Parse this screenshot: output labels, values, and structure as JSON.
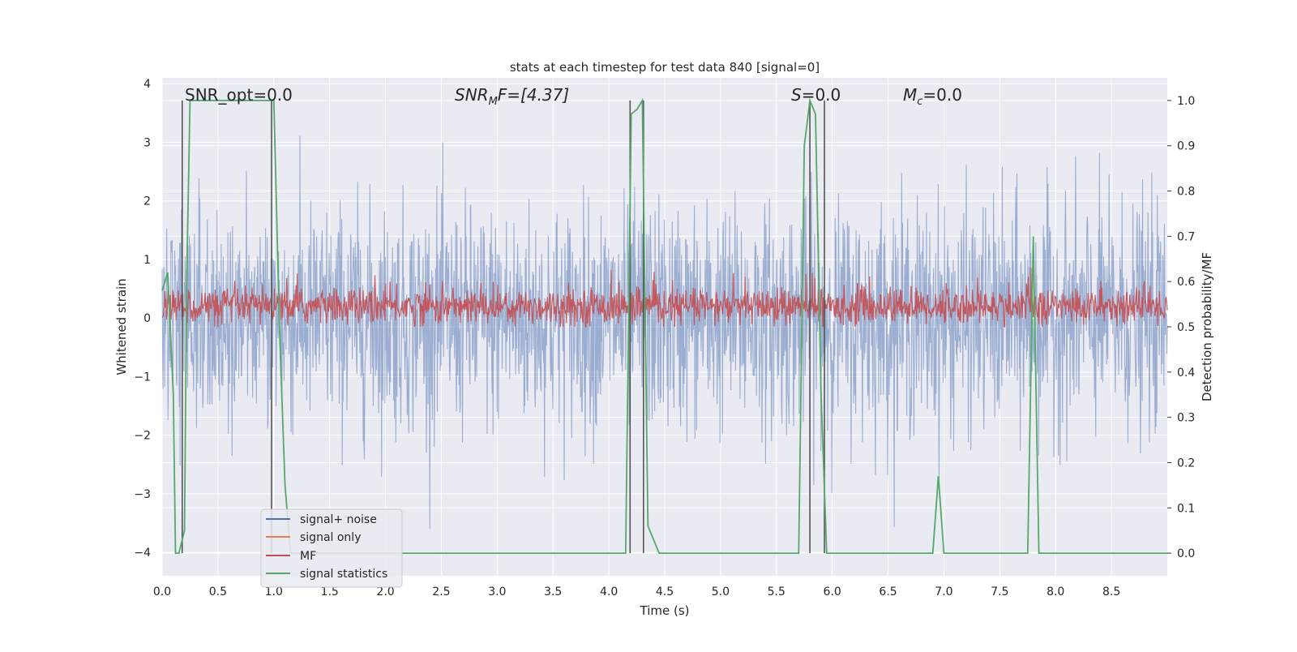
{
  "chart_data": {
    "type": "line",
    "title": "stats at each timestep for test data 840 [signal=0]",
    "xlabel": "Time (s)",
    "ylabel": "Whitened strain",
    "y2label": "Detection probability/MF",
    "xlim": [
      0.0,
      9.0
    ],
    "ylim": [
      -4.4,
      4.1
    ],
    "y2lim": [
      -0.05,
      1.05
    ],
    "x_ticks": [
      "0.0",
      "0.5",
      "1.0",
      "1.5",
      "2.0",
      "2.5",
      "3.0",
      "3.5",
      "4.0",
      "4.5",
      "5.0",
      "5.5",
      "6.0",
      "6.5",
      "7.0",
      "7.5",
      "8.0",
      "8.5"
    ],
    "y_ticks": [
      "4",
      "3",
      "2",
      "1",
      "0",
      "−1",
      "−2",
      "−3",
      "−4"
    ],
    "y2_ticks": [
      "1.0",
      "0.9",
      "0.8",
      "0.7",
      "0.6",
      "0.5",
      "0.4",
      "0.3",
      "0.2",
      "0.1",
      "0.0"
    ],
    "grid": true,
    "legend_position": "lower-left",
    "annotations": {
      "snr_opt": "SNR_opt=0.0",
      "snr_mf_main": "SNR",
      "snr_mf_sub": "M",
      "snr_mf_rest": "F=[4.37]",
      "s_main": "S",
      "s_rest": "=0.0",
      "mc_main": "M",
      "mc_sub": "c",
      "mc_rest": "=0.0"
    },
    "series": [
      {
        "name": "signal+ noise",
        "color": "#4c72b0",
        "axis": "left",
        "description_range": [
          -3.6,
          3.4
        ]
      },
      {
        "name": "signal only",
        "color": "#dd8452",
        "axis": "left",
        "values": []
      },
      {
        "name": "MF",
        "color": "#c44e52",
        "axis": "right",
        "description_range": [
          0.5,
          0.63
        ]
      },
      {
        "name": "signal statistics",
        "color": "#55a868",
        "axis": "right",
        "x": [
          0.0,
          0.05,
          0.1,
          0.12,
          0.15,
          0.2,
          0.22,
          0.25,
          0.3,
          0.5,
          1.0,
          1.05,
          1.1,
          1.15,
          1.2,
          4.15,
          4.2,
          4.25,
          4.3,
          4.35,
          4.45,
          5.7,
          5.75,
          5.8,
          5.85,
          5.9,
          5.95,
          6.0,
          6.9,
          6.95,
          7.0,
          7.2,
          7.75,
          7.8,
          7.85,
          7.9,
          8.9,
          9.0
        ],
        "values": [
          0.58,
          0.62,
          0.35,
          0.0,
          0.0,
          0.05,
          0.6,
          1.0,
          1.0,
          1.0,
          1.0,
          0.5,
          0.15,
          0.0,
          0.0,
          0.0,
          0.97,
          0.98,
          1.0,
          0.06,
          0.0,
          0.0,
          0.9,
          1.0,
          0.97,
          0.35,
          0.0,
          0.0,
          0.0,
          0.17,
          0.0,
          0.0,
          0.0,
          0.7,
          0.0,
          0.0,
          0.0,
          0.0
        ]
      }
    ],
    "vertical_markers_x": [
      0.18,
      0.98,
      4.19,
      4.31,
      5.8,
      5.93
    ]
  },
  "legend": {
    "items": [
      {
        "label": "signal+ noise",
        "color": "#4c72b0"
      },
      {
        "label": "signal only",
        "color": "#dd8452"
      },
      {
        "label": "MF",
        "color": "#c44e52"
      },
      {
        "label": "signal statistics",
        "color": "#55a868"
      }
    ]
  },
  "colors": {
    "plot_background": "#eaeaf2",
    "grid": "#ffffff",
    "marker_line": "#555555"
  }
}
